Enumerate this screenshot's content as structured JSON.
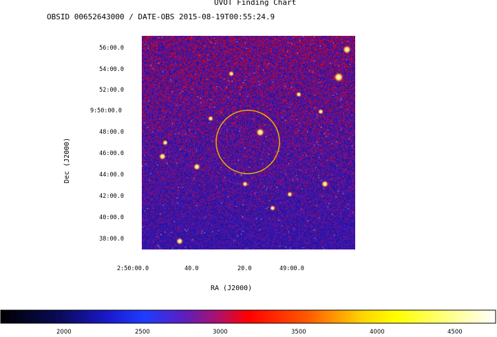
{
  "header": {
    "title": "UVOT Finding Chart",
    "subtitle": "OBSID 00652643000 / DATE-OBS 2015-08-19T00:55:24.9"
  },
  "axes": {
    "dec_label": "Dec (J2000)",
    "ra_label": "RA (J2000)",
    "dec_ticks": [
      "56:00.0",
      "54:00.0",
      "52:00.0",
      "9:50:00.0",
      "48:00.0",
      "46:00.0",
      "44:00.0",
      "42:00.0",
      "40:00.0",
      "38:00.0"
    ],
    "ra_ticks": [
      "2:50:00.0",
      "40.0",
      "20.0",
      "49:00.0"
    ]
  },
  "colorbar": {
    "ticks": [
      "2000",
      "2500",
      "3000",
      "3500",
      "4000",
      "4500"
    ]
  },
  "colors": {
    "circle": "#e8a800",
    "image_base": "#3a1fb0"
  }
}
